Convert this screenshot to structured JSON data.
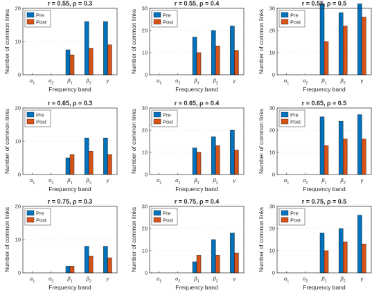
{
  "colors": {
    "pre": "#0072BD",
    "post": "#D95319",
    "axis": "#262626",
    "grid": "#DFDFDF"
  },
  "chart_data": [
    {
      "type": "bar",
      "title": "r = 0.55, ρ = 0.3",
      "xlabel": "Frequency band",
      "ylabel": "Number of common links",
      "categories": [
        {
          "base": "α",
          "sub": "1"
        },
        {
          "base": "α",
          "sub": "2"
        },
        {
          "base": "β",
          "sub": "1"
        },
        {
          "base": "β",
          "sub": "2"
        },
        {
          "base": "γ",
          "sub": ""
        }
      ],
      "ylim": [
        0,
        20
      ],
      "yticks": [
        0,
        10,
        20
      ],
      "legend": "top-left",
      "grid": "y-dashed",
      "series": [
        {
          "name": "Pre",
          "values": [
            0,
            0,
            7.5,
            16,
            16
          ]
        },
        {
          "name": "Post",
          "values": [
            0,
            0,
            6,
            8,
            9
          ]
        }
      ]
    },
    {
      "type": "bar",
      "title": "r = 0.55, ρ = 0.4",
      "xlabel": "Frequency band",
      "ylabel": "Number of common links",
      "categories": [
        {
          "base": "α",
          "sub": "1"
        },
        {
          "base": "α",
          "sub": "2"
        },
        {
          "base": "β",
          "sub": "1"
        },
        {
          "base": "β",
          "sub": "2"
        },
        {
          "base": "γ",
          "sub": ""
        }
      ],
      "ylim": [
        0,
        30
      ],
      "yticks": [
        0,
        10,
        20,
        30
      ],
      "legend": "top-left",
      "grid": "y-dashed",
      "series": [
        {
          "name": "Pre",
          "values": [
            0,
            0,
            17,
            20,
            22
          ]
        },
        {
          "name": "Post",
          "values": [
            0,
            0,
            10,
            13,
            11
          ]
        }
      ]
    },
    {
      "type": "bar",
      "title": "r = 0.55, ρ = 0.5",
      "xlabel": "Frequency band",
      "ylabel": "Number of common links",
      "categories": [
        {
          "base": "α",
          "sub": "1"
        },
        {
          "base": "α",
          "sub": "2"
        },
        {
          "base": "β",
          "sub": "1"
        },
        {
          "base": "β",
          "sub": "2"
        },
        {
          "base": "γ",
          "sub": ""
        }
      ],
      "ylim": [
        0,
        30
      ],
      "yticks": [
        0,
        10,
        20,
        30
      ],
      "legend": "top-left",
      "grid": "y-dashed",
      "series": [
        {
          "name": "Pre",
          "values": [
            0,
            0,
            32,
            28,
            32
          ]
        },
        {
          "name": "Post",
          "values": [
            0,
            0,
            15,
            22,
            26
          ]
        }
      ]
    },
    {
      "type": "bar",
      "title": "r = 0.65, ρ = 0.3",
      "xlabel": "Frequency band",
      "ylabel": "Number of common links",
      "categories": [
        {
          "base": "α",
          "sub": "1"
        },
        {
          "base": "α",
          "sub": "2"
        },
        {
          "base": "β",
          "sub": "1"
        },
        {
          "base": "β",
          "sub": "2"
        },
        {
          "base": "γ",
          "sub": ""
        }
      ],
      "ylim": [
        0,
        20
      ],
      "yticks": [
        0,
        10,
        20
      ],
      "legend": "top-left",
      "grid": "y-dashed",
      "series": [
        {
          "name": "Pre",
          "values": [
            0,
            0,
            5,
            11,
            11
          ]
        },
        {
          "name": "Post",
          "values": [
            0,
            0,
            6,
            7,
            6
          ]
        }
      ]
    },
    {
      "type": "bar",
      "title": "r = 0.65, ρ = 0.4",
      "xlabel": "Frequency band",
      "ylabel": "Number of common links",
      "categories": [
        {
          "base": "α",
          "sub": "1"
        },
        {
          "base": "α",
          "sub": "2"
        },
        {
          "base": "β",
          "sub": "1"
        },
        {
          "base": "β",
          "sub": "2"
        },
        {
          "base": "γ",
          "sub": ""
        }
      ],
      "ylim": [
        0,
        30
      ],
      "yticks": [
        0,
        10,
        20,
        30
      ],
      "legend": "top-left",
      "grid": "y-dashed",
      "series": [
        {
          "name": "Pre",
          "values": [
            0,
            0,
            12,
            17,
            20
          ]
        },
        {
          "name": "Post",
          "values": [
            0,
            0,
            10,
            13,
            11
          ]
        }
      ]
    },
    {
      "type": "bar",
      "title": "r = 0.65, ρ = 0.5",
      "xlabel": "Frequency band",
      "ylabel": "Number of common links",
      "categories": [
        {
          "base": "α",
          "sub": "1"
        },
        {
          "base": "α",
          "sub": "2"
        },
        {
          "base": "β",
          "sub": "1"
        },
        {
          "base": "β",
          "sub": "2"
        },
        {
          "base": "γ",
          "sub": ""
        }
      ],
      "ylim": [
        0,
        30
      ],
      "yticks": [
        0,
        10,
        20,
        30
      ],
      "legend": "top-left",
      "grid": "y-dashed",
      "series": [
        {
          "name": "Pre",
          "values": [
            0,
            0,
            26,
            24,
            27
          ]
        },
        {
          "name": "Post",
          "values": [
            0,
            0,
            13,
            16,
            16
          ]
        }
      ]
    },
    {
      "type": "bar",
      "title": "r = 0.75, ρ = 0.3",
      "xlabel": "Frequency band",
      "ylabel": "Number of common links",
      "categories": [
        {
          "base": "α",
          "sub": "1"
        },
        {
          "base": "α",
          "sub": "2"
        },
        {
          "base": "β",
          "sub": "1"
        },
        {
          "base": "β",
          "sub": "2"
        },
        {
          "base": "γ",
          "sub": ""
        }
      ],
      "ylim": [
        0,
        20
      ],
      "yticks": [
        0,
        10,
        20
      ],
      "legend": "top-left",
      "grid": "y-dashed",
      "series": [
        {
          "name": "Pre",
          "values": [
            0,
            0,
            2,
            8,
            8
          ]
        },
        {
          "name": "Post",
          "values": [
            0,
            0,
            2,
            5,
            4.5
          ]
        }
      ]
    },
    {
      "type": "bar",
      "title": "r = 0.75, ρ = 0.4",
      "xlabel": "Frequency band",
      "ylabel": "Number of common links",
      "categories": [
        {
          "base": "α",
          "sub": "1"
        },
        {
          "base": "α",
          "sub": "2"
        },
        {
          "base": "β",
          "sub": "1"
        },
        {
          "base": "β",
          "sub": "2"
        },
        {
          "base": "γ",
          "sub": ""
        }
      ],
      "ylim": [
        0,
        30
      ],
      "yticks": [
        0,
        10,
        20,
        30
      ],
      "legend": "top-left",
      "grid": "y-dashed",
      "series": [
        {
          "name": "Pre",
          "values": [
            0,
            0,
            5,
            15,
            18
          ]
        },
        {
          "name": "Post",
          "values": [
            0,
            0,
            8,
            8,
            9
          ]
        }
      ]
    },
    {
      "type": "bar",
      "title": "r = 0.75, ρ = 0.5",
      "xlabel": "Frequency band",
      "ylabel": "Number of common links",
      "categories": [
        {
          "base": "α",
          "sub": "1"
        },
        {
          "base": "α",
          "sub": "2"
        },
        {
          "base": "β",
          "sub": "1"
        },
        {
          "base": "β",
          "sub": "2"
        },
        {
          "base": "γ",
          "sub": ""
        }
      ],
      "ylim": [
        0,
        30
      ],
      "yticks": [
        0,
        10,
        20,
        30
      ],
      "legend": "top-left",
      "grid": "y-dashed",
      "series": [
        {
          "name": "Pre",
          "values": [
            0,
            0,
            18,
            20,
            26
          ]
        },
        {
          "name": "Post",
          "values": [
            0,
            0,
            10,
            14,
            13
          ]
        }
      ]
    }
  ]
}
